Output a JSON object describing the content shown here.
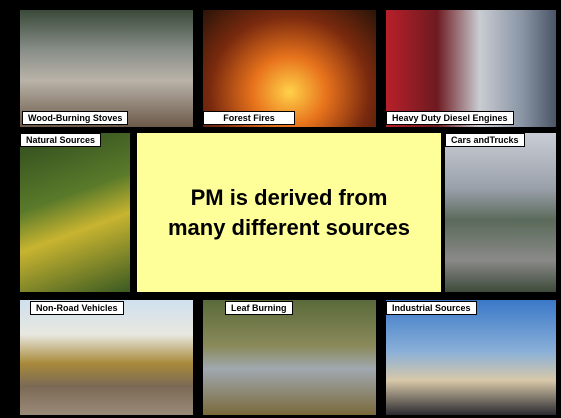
{
  "slide": {
    "message": [
      "PM is derived from",
      "many different sources"
    ],
    "tiles": [
      {
        "label": "Wood-Burning Stoves"
      },
      {
        "label": "Forest Fires"
      },
      {
        "label": "Heavy Duty Diesel Engines"
      },
      {
        "label": "Natural Sources"
      },
      {
        "label": "Cars andTrucks"
      },
      {
        "label": "Non-Road Vehicles"
      },
      {
        "label": "Leaf Burning"
      },
      {
        "label": "Industrial Sources"
      }
    ]
  }
}
